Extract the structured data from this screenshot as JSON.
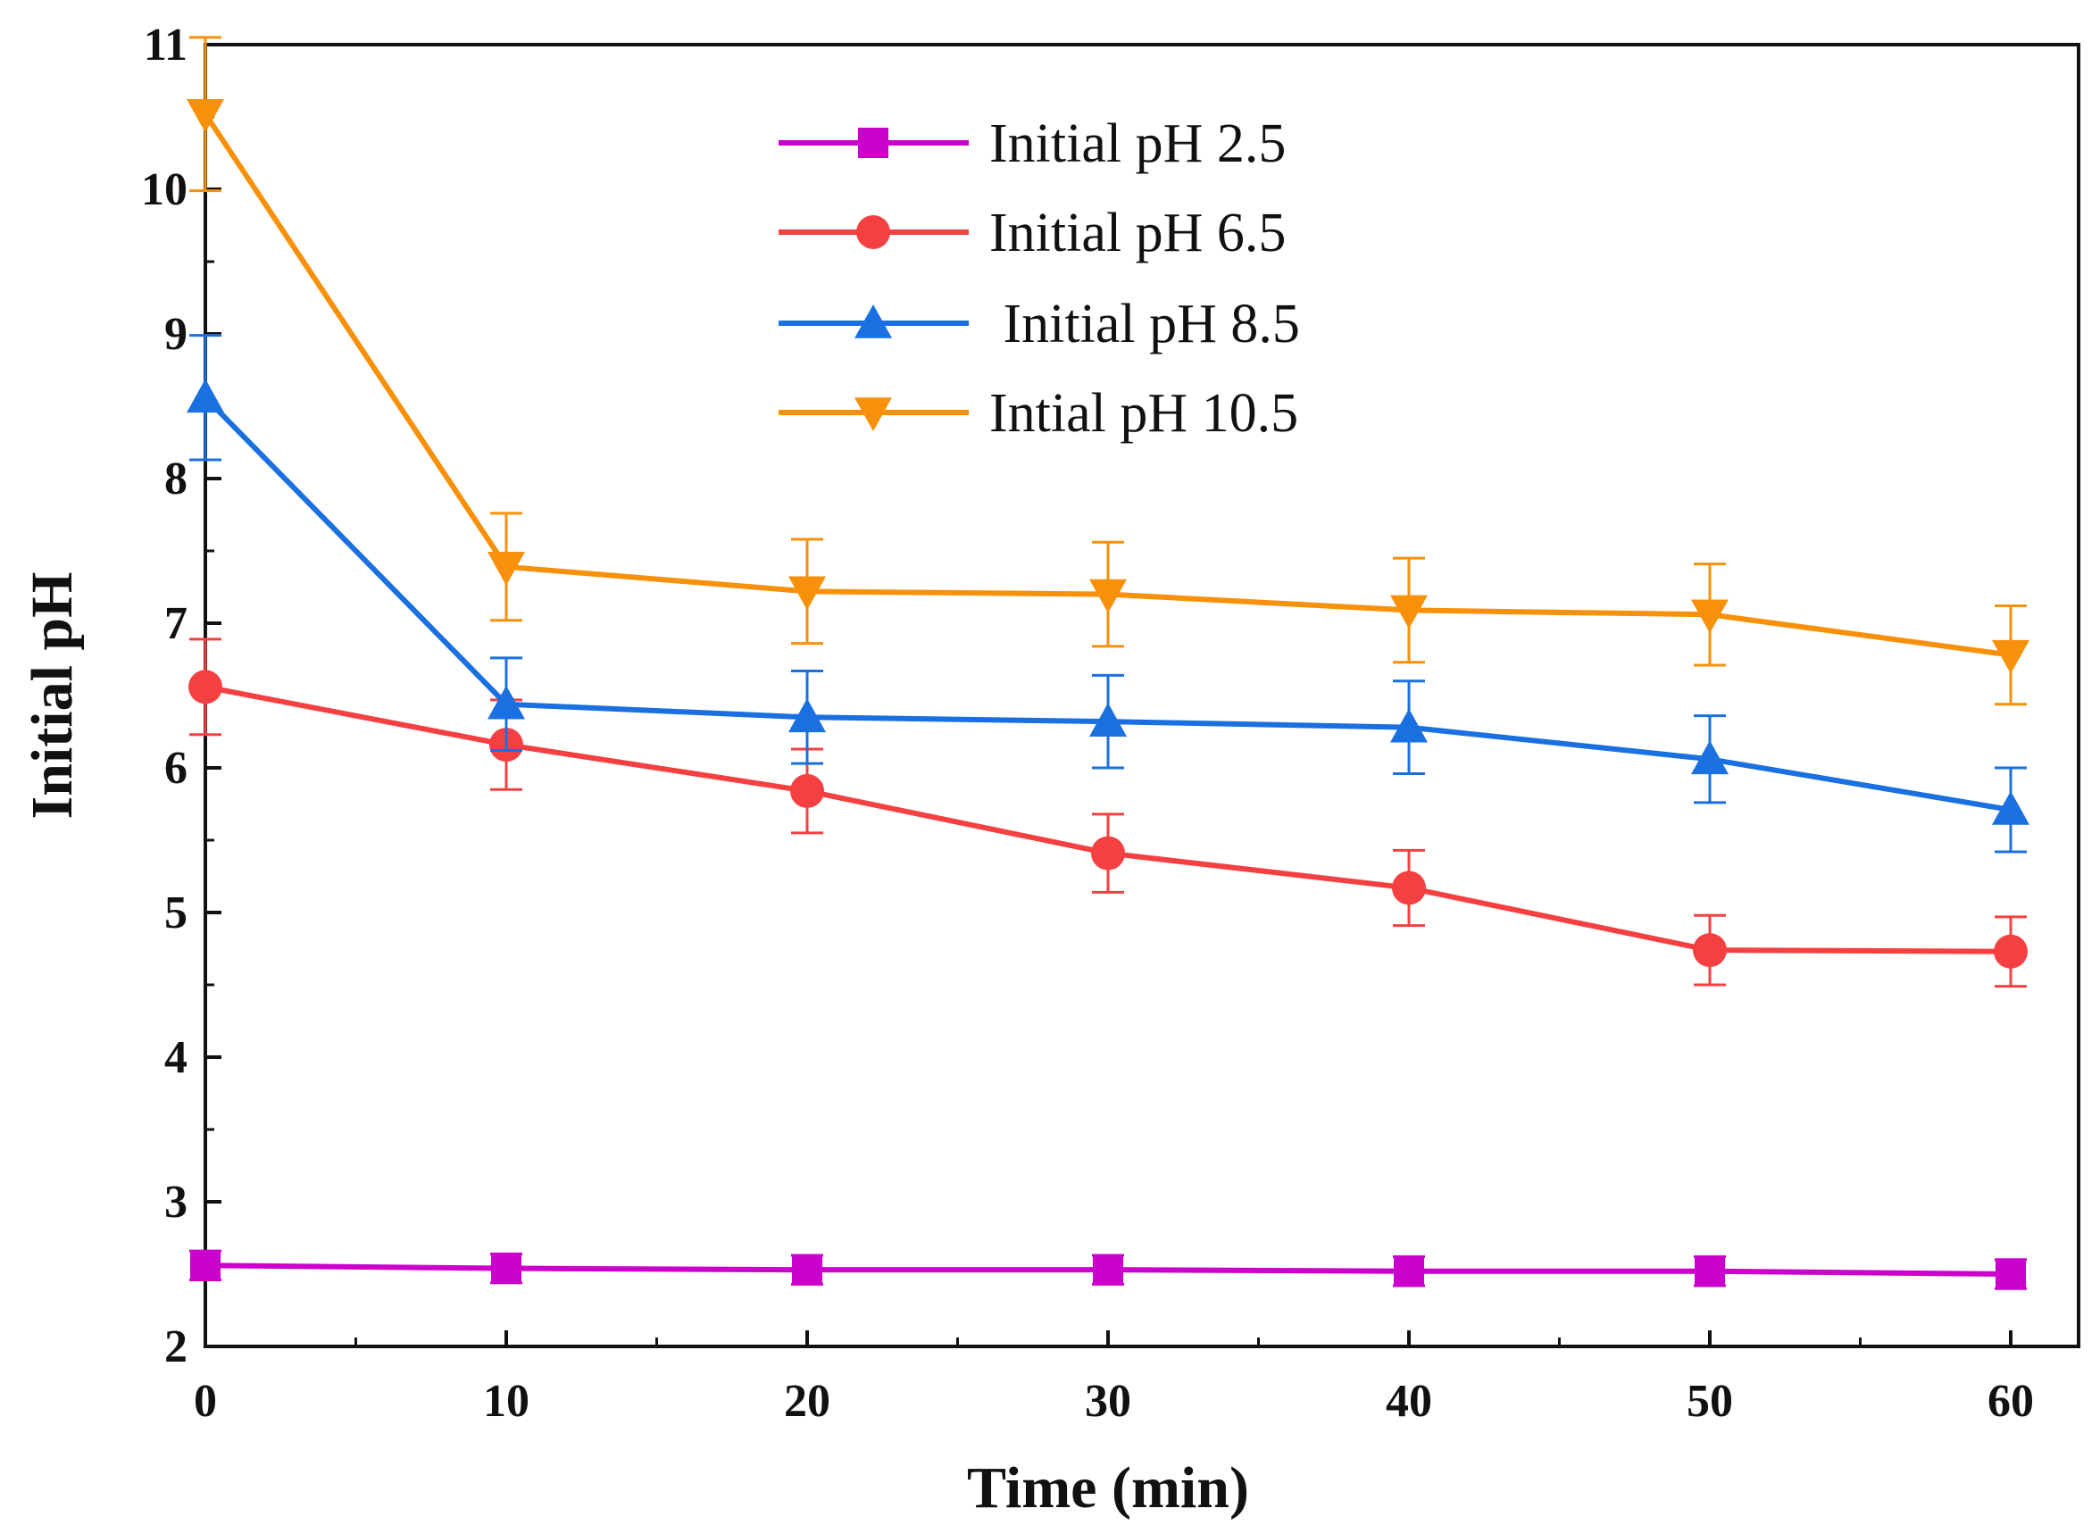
{
  "chart_data": {
    "type": "line",
    "title": "",
    "xlabel": "Time (min)",
    "ylabel": "Initial pH",
    "xlim": [
      0,
      60
    ],
    "ylim": [
      2,
      11
    ],
    "xticks": [
      0,
      10,
      20,
      30,
      40,
      50,
      60
    ],
    "yticks": [
      2,
      3,
      4,
      5,
      6,
      7,
      8,
      9,
      10,
      11
    ],
    "x": [
      0,
      10,
      20,
      30,
      40,
      50,
      60
    ],
    "legend_position": "top-center",
    "grid": false,
    "series": [
      {
        "name": "Initial pH 2.5",
        "marker": "square",
        "color": "#CC00CC",
        "values": [
          2.56,
          2.54,
          2.53,
          2.53,
          2.52,
          2.52,
          2.5
        ],
        "errors": [
          0.1,
          0.1,
          0.1,
          0.1,
          0.1,
          0.1,
          0.1
        ]
      },
      {
        "name": "Initial pH 6.5",
        "marker": "circle",
        "color": "#F44040",
        "values": [
          6.56,
          6.16,
          5.84,
          5.41,
          5.17,
          4.74,
          4.73
        ],
        "errors": [
          0.33,
          0.31,
          0.29,
          0.27,
          0.26,
          0.24,
          0.24
        ]
      },
      {
        "name": " Initial pH 8.5",
        "marker": "triangle-up",
        "color": "#1A70E0",
        "values": [
          8.56,
          6.44,
          6.35,
          6.32,
          6.28,
          6.06,
          5.71
        ],
        "errors": [
          0.43,
          0.32,
          0.32,
          0.32,
          0.32,
          0.3,
          0.29
        ]
      },
      {
        "name": "Intial pH 10.5",
        "marker": "triangle-down",
        "color": "#F7900A",
        "values": [
          10.52,
          7.39,
          7.22,
          7.2,
          7.09,
          7.06,
          6.78
        ],
        "errors": [
          0.53,
          0.37,
          0.36,
          0.36,
          0.36,
          0.35,
          0.34
        ]
      }
    ]
  }
}
